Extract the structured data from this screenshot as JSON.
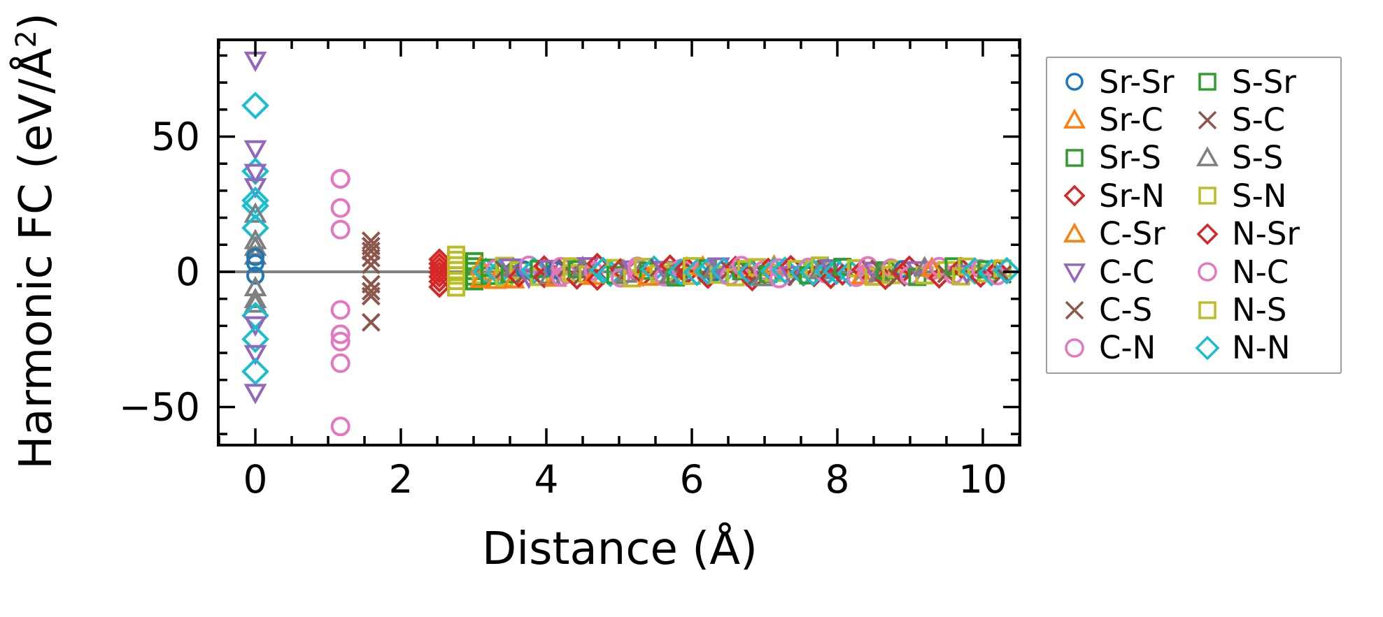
{
  "figure": {
    "background": "#ffffff"
  },
  "chart_data": {
    "type": "scatter",
    "title": "",
    "xlabel": "Distance (Å)",
    "ylabel_parts": {
      "pre": "Harmonic FC (eV/Å",
      "sup": "2",
      "post": ")"
    },
    "xlim": [
      -0.51,
      10.51
    ],
    "ylim": [
      -64.1,
      85.8
    ],
    "grid": false,
    "legend_position": "outside-right",
    "zero_line": {
      "y": 0,
      "color": "#808080"
    },
    "xticks": {
      "major": [
        0,
        2,
        4,
        6,
        8,
        10
      ],
      "major_labels": [
        "0",
        "2",
        "4",
        "6",
        "8",
        "10"
      ],
      "minor_step": 0.5
    },
    "yticks": {
      "major": [
        -50,
        0,
        50
      ],
      "major_labels": [
        "−50",
        "0",
        "50"
      ],
      "minor_step": 10
    },
    "series": [
      {
        "name": "Sr-Sr",
        "color": "#1f77b4",
        "marker": "circle",
        "size": 11
      },
      {
        "name": "Sr-C",
        "color": "#ff7f0e",
        "marker": "triangle-up",
        "size": 13
      },
      {
        "name": "Sr-S",
        "color": "#2ca02c",
        "marker": "square",
        "size": 11
      },
      {
        "name": "Sr-N",
        "color": "#d62728",
        "marker": "diamond",
        "size": 13
      },
      {
        "name": "C-Sr",
        "color": "#ff7f0e",
        "marker": "triangle-up",
        "size": 13
      },
      {
        "name": "C-C",
        "color": "#9467bd",
        "marker": "triangle-down",
        "size": 13
      },
      {
        "name": "C-S",
        "color": "#8c564b",
        "marker": "x",
        "size": 12
      },
      {
        "name": "C-N",
        "color": "#e377c2",
        "marker": "circle",
        "size": 12
      },
      {
        "name": "S-Sr",
        "color": "#2ca02c",
        "marker": "square",
        "size": 11
      },
      {
        "name": "S-C",
        "color": "#8c564b",
        "marker": "x",
        "size": 12
      },
      {
        "name": "S-S",
        "color": "#7f7f7f",
        "marker": "triangle-up",
        "size": 13
      },
      {
        "name": "S-N",
        "color": "#bcbd22",
        "marker": "square",
        "size": 11
      },
      {
        "name": "N-Sr",
        "color": "#d62728",
        "marker": "diamond",
        "size": 13
      },
      {
        "name": "N-C",
        "color": "#e377c2",
        "marker": "circle",
        "size": 12
      },
      {
        "name": "N-S",
        "color": "#bcbd22",
        "marker": "square",
        "size": 11
      },
      {
        "name": "N-N",
        "color": "#17becf",
        "marker": "diamond",
        "size": 17
      }
    ],
    "points": [
      [
        5,
        0,
        78.3
      ],
      [
        15,
        0,
        61.5
      ],
      [
        5,
        0,
        45.5
      ],
      [
        15,
        0,
        37.2
      ],
      [
        5,
        0,
        36.8
      ],
      [
        5,
        0,
        31.5
      ],
      [
        15,
        0,
        26.4
      ],
      [
        15,
        0,
        24.4
      ],
      [
        10,
        0,
        21.3
      ],
      [
        15,
        0,
        16.2
      ],
      [
        10,
        0,
        11.5
      ],
      [
        10,
        0,
        9.0
      ],
      [
        10,
        0,
        5.8
      ],
      [
        0,
        0,
        5.5
      ],
      [
        0,
        0,
        3.2
      ],
      [
        0,
        0,
        -1.4
      ],
      [
        10,
        0,
        -5.9
      ],
      [
        10,
        0,
        -10.3
      ],
      [
        10,
        0,
        -12.0
      ],
      [
        15,
        0,
        -16.2
      ],
      [
        5,
        0,
        -19.6
      ],
      [
        15,
        0,
        -24.9
      ],
      [
        5,
        0,
        -30.2
      ],
      [
        15,
        0,
        -36.9
      ],
      [
        5,
        0,
        -44.6
      ],
      [
        7,
        1.17,
        34.4
      ],
      [
        13,
        1.17,
        34.4
      ],
      [
        7,
        1.17,
        23.6
      ],
      [
        7,
        1.17,
        15.6
      ],
      [
        7,
        1.17,
        -14.1
      ],
      [
        7,
        1.17,
        -23.1
      ],
      [
        13,
        1.17,
        -25.8
      ],
      [
        13,
        1.17,
        -33.8
      ],
      [
        7,
        1.17,
        -57.2
      ],
      [
        6,
        1.59,
        11.5
      ],
      [
        9,
        1.59,
        9.5
      ],
      [
        6,
        1.59,
        7.7
      ],
      [
        9,
        1.59,
        5.1
      ],
      [
        6,
        1.59,
        2.6
      ],
      [
        6,
        1.59,
        -4.6
      ],
      [
        9,
        1.59,
        -7.2
      ],
      [
        6,
        1.59,
        -9.0
      ],
      [
        9,
        1.59,
        -18.7
      ],
      [
        3,
        2.53,
        4.6
      ],
      [
        12,
        2.53,
        3.0
      ],
      [
        3,
        2.53,
        1.4
      ],
      [
        12,
        2.53,
        -0.2
      ],
      [
        3,
        2.53,
        -1.8
      ],
      [
        12,
        2.53,
        -3.6
      ],
      [
        3,
        2.53,
        -5.6
      ],
      [
        11,
        2.76,
        6.3
      ],
      [
        14,
        2.76,
        4.4
      ],
      [
        11,
        2.76,
        2.4
      ],
      [
        14,
        2.76,
        0.6
      ],
      [
        11,
        2.76,
        -1.4
      ],
      [
        14,
        2.76,
        -3.4
      ],
      [
        11,
        2.76,
        -5.8
      ],
      [
        2,
        3.01,
        3.9
      ],
      [
        8,
        3.01,
        2.0
      ],
      [
        2,
        3.01,
        0.3
      ],
      [
        8,
        3.01,
        -1.7
      ],
      [
        2,
        3.01,
        -3.5
      ],
      [
        11,
        3.1,
        -1.2
      ],
      [
        1,
        3.1,
        -2.8
      ],
      [
        4,
        3.1,
        2.0
      ],
      [
        15,
        3.17,
        0.2
      ],
      [
        2,
        3.22,
        1.5
      ],
      [
        8,
        3.22,
        -1.5
      ],
      [
        1,
        3.3,
        -3.2
      ],
      [
        7,
        3.3,
        1.0
      ],
      [
        15,
        3.35,
        -0.3
      ],
      [
        11,
        3.42,
        2.2
      ],
      [
        14,
        3.42,
        -2.2
      ],
      [
        6,
        3.42,
        0.8
      ],
      [
        2,
        3.5,
        -0.9
      ],
      [
        5,
        3.5,
        1.8
      ],
      [
        1,
        3.55,
        -3.0
      ],
      [
        10,
        3.55,
        1.2
      ],
      [
        11,
        3.62,
        0.5
      ],
      [
        3,
        3.62,
        -1.8
      ],
      [
        0,
        3.7,
        0.8
      ],
      [
        9,
        3.7,
        -1.1
      ],
      [
        5,
        3.76,
        -2.0
      ],
      [
        7,
        3.76,
        2.4
      ],
      [
        15,
        3.83,
        0.4
      ],
      [
        11,
        3.9,
        -1.9
      ],
      [
        2,
        3.9,
        1.1
      ],
      [
        3,
        3.97,
        2.1
      ],
      [
        12,
        3.97,
        -2.1
      ],
      [
        10,
        4.05,
        -1.5
      ],
      [
        5,
        4.05,
        1.3
      ],
      [
        0,
        4.13,
        0.6
      ],
      [
        1,
        4.13,
        -2.4
      ],
      [
        7,
        4.2,
        1.9
      ],
      [
        13,
        4.2,
        -1.9
      ],
      [
        7,
        4.28,
        -0.8
      ],
      [
        6,
        4.28,
        1.4
      ],
      [
        11,
        4.35,
        2.0
      ],
      [
        14,
        4.35,
        -0.5
      ],
      [
        3,
        4.42,
        -2.6
      ],
      [
        2,
        4.42,
        0.9
      ],
      [
        9,
        4.5,
        -1.3
      ],
      [
        10,
        4.5,
        1.6
      ],
      [
        5,
        4.57,
        2.3
      ],
      [
        11,
        4.57,
        -1.0
      ],
      [
        7,
        4.65,
        0.3
      ],
      [
        1,
        4.65,
        -1.7
      ],
      [
        3,
        4.7,
        3.0
      ],
      [
        12,
        4.7,
        -3.0
      ],
      [
        15,
        4.78,
        0.5
      ],
      [
        15,
        4.88,
        -0.6
      ],
      [
        11,
        4.95,
        1.4
      ],
      [
        2,
        4.95,
        -1.2
      ],
      [
        3,
        5.02,
        1.0
      ],
      [
        7,
        5.02,
        -2.2
      ],
      [
        6,
        5.1,
        0.7
      ],
      [
        10,
        5.1,
        -0.9
      ],
      [
        11,
        5.18,
        -2.4
      ],
      [
        5,
        5.18,
        1.1
      ],
      [
        7,
        5.25,
        2.0
      ],
      [
        13,
        5.25,
        0.8
      ],
      [
        3,
        5.33,
        -1.4
      ],
      [
        14,
        5.33,
        1.8
      ],
      [
        2,
        5.4,
        0.4
      ],
      [
        1,
        5.4,
        -2.0
      ],
      [
        15,
        5.48,
        1.0
      ],
      [
        11,
        5.55,
        -0.7
      ],
      [
        9,
        5.55,
        1.5
      ],
      [
        7,
        5.62,
        -1.8
      ],
      [
        5,
        5.62,
        0.9
      ],
      [
        3,
        5.7,
        2.4
      ],
      [
        10,
        5.7,
        -1.3
      ],
      [
        11,
        5.78,
        0.2
      ],
      [
        2,
        5.78,
        -2.1
      ],
      [
        7,
        5.85,
        1.2
      ],
      [
        6,
        5.85,
        -0.6
      ],
      [
        15,
        5.85,
        -0.1
      ],
      [
        3,
        5.93,
        -0.9
      ],
      [
        12,
        5.93,
        1.6
      ],
      [
        11,
        6.0,
        2.1
      ],
      [
        14,
        6.0,
        -1.5
      ],
      [
        15,
        6.07,
        -0.2
      ],
      [
        7,
        6.15,
        0.9
      ],
      [
        1,
        6.15,
        1.8
      ],
      [
        3,
        6.22,
        -2.3
      ],
      [
        2,
        6.22,
        1.3
      ],
      [
        15,
        6.22,
        0.2
      ],
      [
        0,
        6.3,
        -0.5
      ],
      [
        10,
        6.3,
        0.7
      ],
      [
        11,
        6.37,
        -1.1
      ],
      [
        5,
        6.37,
        2.2
      ],
      [
        15,
        6.44,
        0.3
      ],
      [
        7,
        6.52,
        -1.6
      ],
      [
        9,
        6.52,
        0.6
      ],
      [
        3,
        6.6,
        1.9
      ],
      [
        11,
        6.6,
        -2.0
      ],
      [
        2,
        6.68,
        0.2
      ],
      [
        7,
        6.68,
        2.3
      ],
      [
        5,
        6.75,
        -1.2
      ],
      [
        14,
        6.75,
        1.0
      ],
      [
        3,
        6.83,
        -3.2
      ],
      [
        12,
        6.83,
        0.4
      ],
      [
        15,
        6.81,
        -0.4
      ],
      [
        11,
        6.9,
        1.7
      ],
      [
        6,
        6.9,
        -1.4
      ],
      [
        7,
        6.98,
        0.5
      ],
      [
        10,
        6.98,
        -2.2
      ],
      [
        3,
        7.05,
        1.2
      ],
      [
        2,
        7.05,
        -0.8
      ],
      [
        11,
        7.13,
        -0.4
      ],
      [
        1,
        7.13,
        2.1
      ],
      [
        15,
        7.13,
        0.3
      ],
      [
        7,
        7.2,
        -2.5
      ],
      [
        13,
        7.2,
        1.4
      ],
      [
        15,
        7.28,
        0.6
      ],
      [
        3,
        7.36,
        2.2
      ],
      [
        5,
        7.36,
        -1.0
      ],
      [
        11,
        7.44,
        1.0
      ],
      [
        9,
        7.44,
        -1.9
      ],
      [
        15,
        7.53,
        -0.4
      ],
      [
        7,
        7.6,
        1.6
      ],
      [
        2,
        7.6,
        -1.3
      ],
      [
        3,
        7.68,
        -1.7
      ],
      [
        14,
        7.68,
        0.8
      ],
      [
        15,
        7.67,
        -0.2
      ],
      [
        11,
        7.76,
        2.3
      ],
      [
        10,
        7.76,
        0.4
      ],
      [
        7,
        7.84,
        -0.7
      ],
      [
        6,
        7.84,
        1.2
      ],
      [
        15,
        7.87,
        0.1
      ],
      [
        5,
        7.91,
        1.5
      ],
      [
        12,
        7.91,
        -2.4
      ],
      [
        15,
        7.99,
        0.2
      ],
      [
        3,
        8.07,
        -1.1
      ],
      [
        2,
        8.07,
        1.8
      ],
      [
        15,
        8.18,
        -0.5
      ],
      [
        11,
        8.26,
        1.3
      ],
      [
        7,
        8.26,
        -2.0
      ],
      [
        3,
        8.34,
        0.7
      ],
      [
        1,
        8.34,
        -1.5
      ],
      [
        7,
        8.42,
        2.2
      ],
      [
        13,
        8.42,
        -0.9
      ],
      [
        11,
        8.5,
        -1.8
      ],
      [
        5,
        8.5,
        0.6
      ],
      [
        9,
        8.58,
        1.1
      ],
      [
        10,
        8.58,
        -0.6
      ],
      [
        3,
        8.66,
        -2.7
      ],
      [
        2,
        8.66,
        0.5
      ],
      [
        7,
        8.74,
        1.4
      ],
      [
        14,
        8.74,
        -1.2
      ],
      [
        11,
        8.82,
        0.9
      ],
      [
        6,
        8.82,
        -2.1
      ],
      [
        0,
        8.9,
        1.0
      ],
      [
        3,
        8.9,
        -0.3
      ],
      [
        12,
        8.99,
        2.0
      ],
      [
        7,
        8.99,
        -1.5
      ],
      [
        5,
        9.1,
        0.8
      ],
      [
        2,
        9.1,
        -1.9
      ],
      [
        11,
        9.2,
        -1.3
      ],
      [
        10,
        9.2,
        1.5
      ],
      [
        7,
        9.3,
        0.4
      ],
      [
        1,
        9.3,
        1.3
      ],
      [
        3,
        9.4,
        -2.2
      ],
      [
        13,
        9.4,
        1.9
      ],
      [
        11,
        9.5,
        0.6
      ],
      [
        9,
        9.5,
        -0.8
      ],
      [
        7,
        9.6,
        -1.1
      ],
      [
        2,
        9.6,
        2.0
      ],
      [
        3,
        9.7,
        1.5
      ],
      [
        14,
        9.7,
        -1.7
      ],
      [
        5,
        9.78,
        -0.5
      ],
      [
        11,
        9.78,
        1.9
      ],
      [
        15,
        9.89,
        0.3
      ],
      [
        3,
        9.97,
        -1.9
      ],
      [
        7,
        9.97,
        1.1
      ],
      [
        11,
        10.05,
        -0.6
      ],
      [
        2,
        10.05,
        0.9
      ],
      [
        15,
        10.12,
        -0.3
      ],
      [
        7,
        10.2,
        -1.4
      ],
      [
        12,
        10.2,
        0.7
      ],
      [
        11,
        10.27,
        1.2
      ],
      [
        6,
        10.27,
        -1.0
      ],
      [
        15,
        10.33,
        0.4
      ]
    ]
  },
  "legend": {
    "column1": [
      "Sr-Sr",
      "Sr-C",
      "Sr-S",
      "Sr-N",
      "C-Sr",
      "C-C",
      "C-S",
      "C-N"
    ],
    "column2": [
      "S-Sr",
      "S-C",
      "S-S",
      "S-N",
      "N-Sr",
      "N-C",
      "N-S",
      "N-N"
    ]
  }
}
